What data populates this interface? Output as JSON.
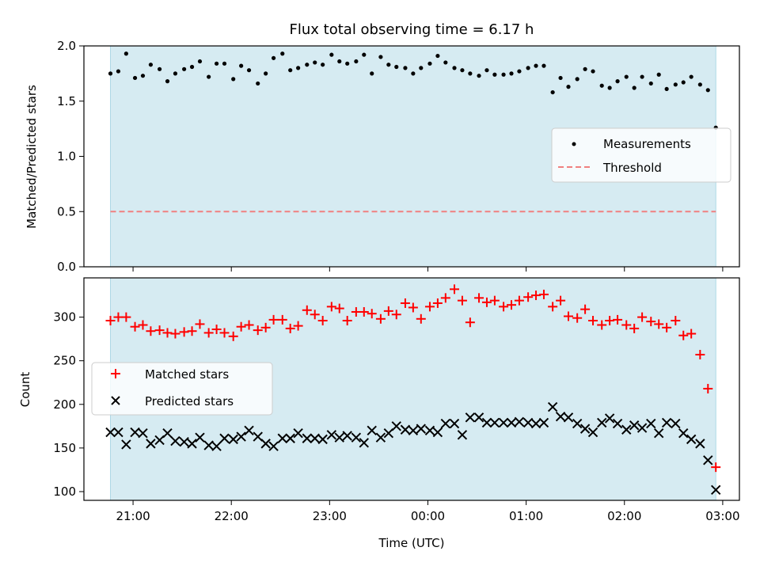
{
  "chart_data": [
    {
      "type": "scatter",
      "title": "Flux total observing time = 6.17 h",
      "ylabel": "Matched/Predicted stars",
      "xlabel": "",
      "ylim": [
        0,
        2.0
      ],
      "yticks": [
        "0.0",
        "0.5",
        "1.0",
        "1.5",
        "2.0"
      ],
      "xlim_hours": [
        20.5,
        27.17
      ],
      "xticks": [
        "21:00",
        "22:00",
        "23:00",
        "00:00",
        "01:00",
        "02:00",
        "03:00"
      ],
      "shaded_span_hours": [
        20.77,
        26.93
      ],
      "legend": {
        "placement": "right",
        "measurements": "Measurements",
        "threshold": "Threshold"
      },
      "threshold": 0.5,
      "colors": {
        "shade": "#add8e6",
        "measurements": "#000000",
        "threshold": "#f08080"
      },
      "measurements": {
        "x": [
          20.77,
          20.85,
          20.93,
          21.02,
          21.1,
          21.18,
          21.27,
          21.35,
          21.43,
          21.52,
          21.6,
          21.68,
          21.77,
          21.85,
          21.93,
          22.02,
          22.1,
          22.18,
          22.27,
          22.35,
          22.43,
          22.52,
          22.6,
          22.68,
          22.77,
          22.85,
          22.93,
          23.02,
          23.1,
          23.18,
          23.27,
          23.35,
          23.43,
          23.52,
          23.6,
          23.68,
          23.77,
          23.85,
          23.93,
          24.02,
          24.1,
          24.18,
          24.27,
          24.35,
          24.43,
          24.52,
          24.6,
          24.68,
          24.77,
          24.85,
          24.93,
          25.02,
          25.1,
          25.18,
          25.27,
          25.35,
          25.43,
          25.52,
          25.6,
          25.68,
          25.77,
          25.85,
          25.93,
          26.02,
          26.1,
          26.18,
          26.27,
          26.35,
          26.43,
          26.52,
          26.6,
          26.68,
          26.77,
          26.85,
          26.93
        ],
        "y": [
          1.75,
          1.77,
          1.93,
          1.71,
          1.73,
          1.83,
          1.79,
          1.68,
          1.75,
          1.79,
          1.81,
          1.86,
          1.72,
          1.84,
          1.84,
          1.7,
          1.82,
          1.78,
          1.66,
          1.75,
          1.89,
          1.93,
          1.78,
          1.8,
          1.83,
          1.85,
          1.83,
          1.92,
          1.86,
          1.84,
          1.86,
          1.92,
          1.75,
          1.9,
          1.83,
          1.81,
          1.8,
          1.75,
          1.8,
          1.84,
          1.91,
          1.85,
          1.8,
          1.78,
          1.75,
          1.73,
          1.78,
          1.74,
          1.74,
          1.75,
          1.77,
          1.8,
          1.82,
          1.82,
          1.58,
          1.71,
          1.63,
          1.7,
          1.79,
          1.77,
          1.64,
          1.62,
          1.68,
          1.72,
          1.62,
          1.72,
          1.66,
          1.74,
          1.61,
          1.65,
          1.67,
          1.72,
          1.65,
          1.6,
          1.26
        ]
      }
    },
    {
      "type": "scatter",
      "title": "",
      "xlabel": "Time (UTC)",
      "ylabel": "Count",
      "ylim": [
        90,
        345
      ],
      "yticks": [
        "100",
        "150",
        "200",
        "250",
        "300"
      ],
      "xlim_hours": [
        20.5,
        27.17
      ],
      "xticks": [
        "21:00",
        "22:00",
        "23:00",
        "00:00",
        "01:00",
        "02:00",
        "03:00"
      ],
      "shaded_span_hours": [
        20.77,
        26.93
      ],
      "legend": {
        "placement": "left",
        "matched": "Matched stars",
        "predicted": "Predicted stars"
      },
      "colors": {
        "shade": "#add8e6",
        "matched": "#ff0000",
        "predicted": "#000000"
      },
      "matched": {
        "x": [
          20.77,
          20.85,
          20.93,
          21.02,
          21.1,
          21.18,
          21.27,
          21.35,
          21.43,
          21.52,
          21.6,
          21.68,
          21.77,
          21.85,
          21.93,
          22.02,
          22.1,
          22.18,
          22.27,
          22.35,
          22.43,
          22.52,
          22.6,
          22.68,
          22.77,
          22.85,
          22.93,
          23.02,
          23.1,
          23.18,
          23.27,
          23.35,
          23.43,
          23.52,
          23.6,
          23.68,
          23.77,
          23.85,
          23.93,
          24.02,
          24.1,
          24.18,
          24.27,
          24.35,
          24.43,
          24.52,
          24.6,
          24.68,
          24.77,
          24.85,
          24.93,
          25.02,
          25.1,
          25.18,
          25.27,
          25.35,
          25.43,
          25.52,
          25.6,
          25.68,
          25.77,
          25.85,
          25.93,
          26.02,
          26.1,
          26.18,
          26.27,
          26.35,
          26.43,
          26.52,
          26.6,
          26.68,
          26.77,
          26.85,
          26.93
        ],
        "y": [
          296,
          300,
          300,
          289,
          291,
          284,
          285,
          282,
          281,
          283,
          284,
          292,
          282,
          286,
          282,
          278,
          289,
          291,
          285,
          288,
          297,
          297,
          287,
          290,
          308,
          303,
          296,
          312,
          310,
          296,
          306,
          306,
          304,
          298,
          307,
          303,
          316,
          311,
          298,
          312,
          316,
          322,
          332,
          319,
          294,
          322,
          317,
          319,
          312,
          314,
          319,
          323,
          325,
          326,
          312,
          319,
          301,
          299,
          309,
          296,
          291,
          296,
          297,
          291,
          287,
          300,
          295,
          292,
          288,
          296,
          279,
          281,
          257,
          218,
          128
        ]
      },
      "predicted": {
        "x": [
          20.77,
          20.85,
          20.93,
          21.02,
          21.1,
          21.18,
          21.27,
          21.35,
          21.43,
          21.52,
          21.6,
          21.68,
          21.77,
          21.85,
          21.93,
          22.02,
          22.1,
          22.18,
          22.27,
          22.35,
          22.43,
          22.52,
          22.6,
          22.68,
          22.77,
          22.85,
          22.93,
          23.02,
          23.1,
          23.18,
          23.27,
          23.35,
          23.43,
          23.52,
          23.6,
          23.68,
          23.77,
          23.85,
          23.93,
          24.02,
          24.1,
          24.18,
          24.27,
          24.35,
          24.43,
          24.52,
          24.6,
          24.68,
          24.77,
          24.85,
          24.93,
          25.02,
          25.1,
          25.18,
          25.27,
          25.35,
          25.43,
          25.52,
          25.6,
          25.68,
          25.77,
          25.85,
          25.93,
          26.02,
          26.1,
          26.18,
          26.27,
          26.35,
          26.43,
          26.52,
          26.6,
          26.68,
          26.77,
          26.85,
          26.93
        ],
        "y": [
          168,
          168,
          154,
          168,
          167,
          155,
          159,
          167,
          158,
          157,
          155,
          162,
          153,
          152,
          161,
          160,
          163,
          170,
          163,
          155,
          152,
          161,
          161,
          167,
          161,
          161,
          160,
          165,
          162,
          164,
          162,
          156,
          170,
          162,
          167,
          175,
          171,
          170,
          172,
          170,
          168,
          178,
          178,
          165,
          185,
          185,
          179,
          179,
          179,
          179,
          180,
          179,
          178,
          179,
          197,
          186,
          185,
          178,
          172,
          168,
          179,
          184,
          178,
          171,
          176,
          173,
          178,
          167,
          179,
          178,
          167,
          160,
          155,
          136,
          102
        ]
      }
    }
  ]
}
